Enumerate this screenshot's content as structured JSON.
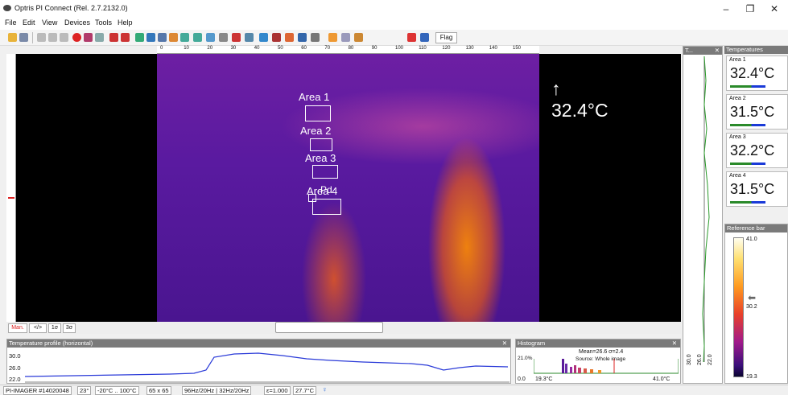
{
  "window": {
    "title": "Optris PI Connect (Rel. 2.7.2132.0)",
    "minimize": "–",
    "maximize": "❐",
    "close": "✕"
  },
  "menu": [
    "File",
    "Edit",
    "View",
    "Devices",
    "Tools",
    "Help"
  ],
  "toolbar": {
    "flag_label": "Flag"
  },
  "ruler": {
    "ticks": [
      "0",
      "10",
      "20",
      "30",
      "40",
      "50",
      "60",
      "70",
      "80",
      "90",
      "100",
      "110",
      "120",
      "130",
      "140",
      "150"
    ]
  },
  "viewer": {
    "max_temp": "↑ 32.4°C",
    "areas": [
      "Area 1",
      "Area 2",
      "Area 3",
      "Area 4"
    ],
    "pointer_label": "Pd"
  },
  "view_controls": {
    "manual": "Man.",
    "range": "</>",
    "sigma1": "1σ",
    "sigma3": "3σ"
  },
  "profile": {
    "title": "Temperature profile (horizontal)",
    "y_labels": [
      "30.0",
      "26.0",
      "22.0"
    ]
  },
  "histogram": {
    "title": "Histogram",
    "stats": "Mean=26.6 σ=2.4",
    "source": "Source: Whole image",
    "y_label": "21.0%",
    "x_min": "0.0",
    "x_start": "19.3°C",
    "x_end": "41.0°C"
  },
  "tcolumn": {
    "title": "T...",
    "labels": [
      "30.0",
      "26.0",
      "22.0"
    ]
  },
  "temperatures": {
    "title": "Temperatures",
    "cards": [
      {
        "name": "Area 1",
        "value": "32.4°C"
      },
      {
        "name": "Area 2",
        "value": "31.5°C"
      },
      {
        "name": "Area 3",
        "value": "32.2°C"
      },
      {
        "name": "Area 4",
        "value": "31.5°C"
      }
    ]
  },
  "reference_bar": {
    "title": "Reference bar",
    "max": "41.0",
    "mid": "30.2",
    "min": "19.3"
  },
  "status": {
    "device": "PI-IMAGER #14020048",
    "fov": "23°",
    "range": "-20°C .. 100°C",
    "resolution": "65 x 65",
    "framerate": "96Hz/20Hz | 32Hz/20Hz",
    "emissivity": "ε=1.000",
    "ambient": "27.7°C"
  }
}
